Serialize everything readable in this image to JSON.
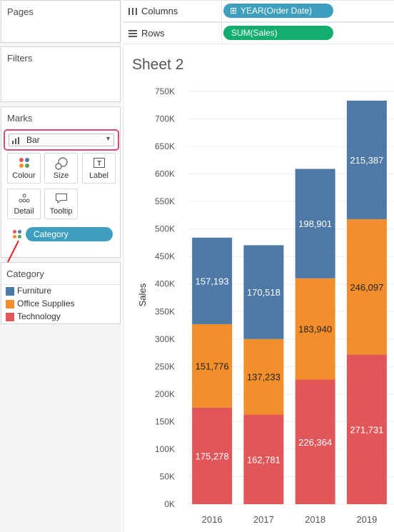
{
  "shelves": {
    "pages_title": "Pages",
    "filters_title": "Filters",
    "columns_label": "Columns",
    "columns_pill": "YEAR(Order Date)",
    "rows_label": "Rows",
    "rows_pill": "SUM(Sales)"
  },
  "marks": {
    "title": "Marks",
    "mark_type": "Bar",
    "buttons": [
      "Colour",
      "Size",
      "Label",
      "Detail",
      "Tooltip"
    ],
    "field_pill": "Category"
  },
  "legend": {
    "title": "Category",
    "items": [
      {
        "label": "Furniture",
        "color": "#4e79a7"
      },
      {
        "label": "Office Supplies",
        "color": "#f28e2b"
      },
      {
        "label": "Technology",
        "color": "#e15759"
      }
    ]
  },
  "sheet": {
    "title": "Sheet 2"
  },
  "chart_data": {
    "type": "bar",
    "stacked": true,
    "categories": [
      "2016",
      "2017",
      "2018",
      "2019"
    ],
    "series": [
      {
        "name": "Technology",
        "color": "#e15759",
        "values": [
          175278,
          162781,
          226364,
          271731
        ],
        "labels": [
          "175,278",
          "162,781",
          "226,364",
          "271,731"
        ]
      },
      {
        "name": "Office Supplies",
        "color": "#f28e2b",
        "values": [
          151776,
          137233,
          183940,
          246097
        ],
        "labels": [
          "151,776",
          "137,233",
          "183,940",
          "246,097"
        ]
      },
      {
        "name": "Furniture",
        "color": "#4e79a7",
        "values": [
          157193,
          170518,
          198901,
          215387
        ],
        "labels": [
          "157,193",
          "170,518",
          "198,901",
          "215,387"
        ]
      }
    ],
    "ylabel": "Sales",
    "ylim": [
      0,
      750000
    ],
    "yticks": [
      0,
      50000,
      100000,
      150000,
      200000,
      250000,
      300000,
      350000,
      400000,
      450000,
      500000,
      550000,
      600000,
      650000,
      700000,
      750000
    ],
    "ytick_labels": [
      "0K",
      "50K",
      "100K",
      "150K",
      "200K",
      "250K",
      "300K",
      "350K",
      "400K",
      "450K",
      "500K",
      "550K",
      "600K",
      "650K",
      "700K",
      "750K"
    ],
    "grid": true,
    "legend": "left panel"
  }
}
